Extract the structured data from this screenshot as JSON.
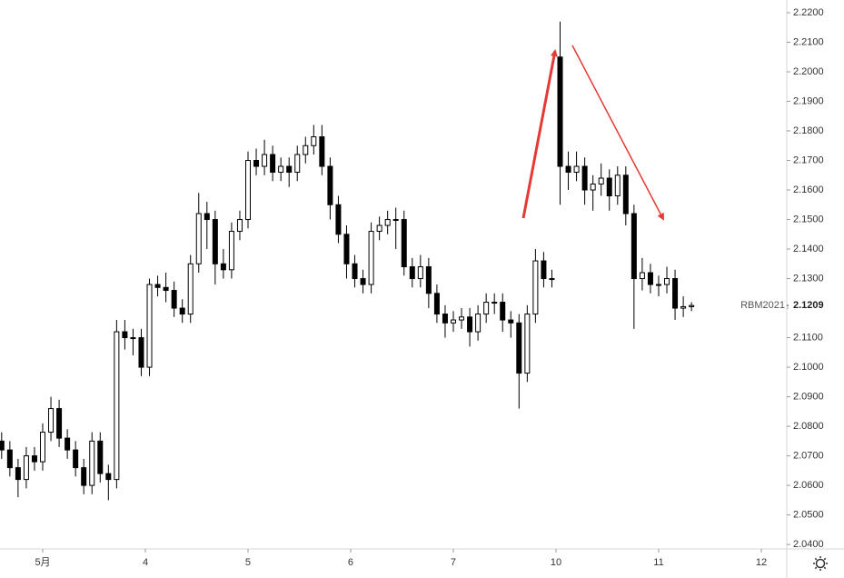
{
  "chart_data": {
    "type": "candlestick",
    "series": [
      {
        "name": "RBM2021",
        "up_color": "#ffffff",
        "down_color": "#000000",
        "outline_color": "#000000",
        "x": [
          -0.4,
          -0.32,
          -0.24,
          -0.16,
          -0.08,
          0,
          0.08,
          0.16,
          0.24,
          0.32,
          0.4,
          0.48,
          0.56,
          0.64,
          0.72,
          0.8,
          0.88,
          0.96,
          1.04,
          1.12,
          1.2,
          1.28,
          1.36,
          1.44,
          1.52,
          1.6,
          1.68,
          1.76,
          1.84,
          1.92,
          2,
          2.08,
          2.16,
          2.24,
          2.32,
          2.4,
          2.48,
          2.56,
          2.64,
          2.72,
          2.8,
          2.88,
          2.96,
          3.04,
          3.12,
          3.2,
          3.28,
          3.36,
          3.44,
          3.52,
          3.6,
          3.68,
          3.76,
          3.84,
          3.92,
          4,
          4.08,
          4.16,
          4.24,
          4.32,
          4.4,
          4.48,
          4.56,
          4.64,
          4.72,
          4.8,
          4.88,
          4.96,
          5.04,
          5.12,
          5.2,
          5.28,
          5.36,
          5.44,
          5.52,
          5.6,
          5.68,
          5.76,
          5.84,
          5.92,
          6,
          6.08,
          6.16,
          6.24,
          6.32
        ],
        "open": [
          2.075,
          2.072,
          2.066,
          2.062,
          2.07,
          2.068,
          2.078,
          2.086,
          2.076,
          2.072,
          2.066,
          2.06,
          2.075,
          2.064,
          2.062,
          2.112,
          2.11,
          2.11,
          2.1,
          2.128,
          2.127,
          2.126,
          2.12,
          2.118,
          2.135,
          2.152,
          2.15,
          2.135,
          2.133,
          2.146,
          2.15,
          2.17,
          2.168,
          2.172,
          2.166,
          2.168,
          2.166,
          2.172,
          2.175,
          2.178,
          2.168,
          2.155,
          2.145,
          2.135,
          2.13,
          2.128,
          2.146,
          2.148,
          2.15,
          2.15,
          2.134,
          2.13,
          2.134,
          2.125,
          2.118,
          2.115,
          2.116,
          2.117,
          2.112,
          2.118,
          2.122,
          2.122,
          2.116,
          2.115,
          2.098,
          2.118,
          2.136,
          2.13,
          2.205,
          2.168,
          2.166,
          2.168,
          2.16,
          2.162,
          2.164,
          2.158,
          2.165,
          2.152,
          2.13,
          2.132,
          2.128,
          2.128,
          2.13,
          2.12,
          2.1205
        ],
        "high": [
          2.078,
          2.075,
          2.069,
          2.073,
          2.073,
          2.081,
          2.09,
          2.089,
          2.079,
          2.075,
          2.069,
          2.078,
          2.078,
          2.067,
          2.116,
          2.116,
          2.113,
          2.113,
          2.13,
          2.131,
          2.132,
          2.129,
          2.123,
          2.138,
          2.159,
          2.156,
          2.153,
          2.14,
          2.149,
          2.153,
          2.173,
          2.174,
          2.177,
          2.175,
          2.171,
          2.171,
          2.175,
          2.178,
          2.182,
          2.182,
          2.171,
          2.158,
          2.148,
          2.138,
          2.133,
          2.149,
          2.151,
          2.153,
          2.154,
          2.153,
          2.137,
          2.138,
          2.137,
          2.128,
          2.121,
          2.119,
          2.12,
          2.12,
          2.121,
          2.125,
          2.125,
          2.125,
          2.119,
          2.118,
          2.121,
          2.14,
          2.139,
          2.133,
          2.217,
          2.173,
          2.173,
          2.171,
          2.165,
          2.169,
          2.167,
          2.168,
          2.168,
          2.155,
          2.137,
          2.135,
          2.131,
          2.134,
          2.133,
          2.124,
          2.122
        ],
        "low": [
          2.069,
          2.063,
          2.056,
          2.059,
          2.065,
          2.065,
          2.075,
          2.073,
          2.069,
          2.063,
          2.057,
          2.057,
          2.061,
          2.055,
          2.059,
          2.106,
          2.104,
          2.097,
          2.097,
          2.124,
          2.122,
          2.117,
          2.115,
          2.115,
          2.132,
          2.14,
          2.128,
          2.13,
          2.13,
          2.143,
          2.147,
          2.165,
          2.165,
          2.163,
          2.163,
          2.161,
          2.163,
          2.169,
          2.172,
          2.165,
          2.15,
          2.142,
          2.13,
          2.127,
          2.125,
          2.125,
          2.143,
          2.145,
          2.14,
          2.131,
          2.127,
          2.127,
          2.12,
          2.115,
          2.11,
          2.112,
          2.113,
          2.107,
          2.109,
          2.115,
          2.118,
          2.112,
          2.11,
          2.086,
          2.095,
          2.115,
          2.127,
          2.127,
          2.155,
          2.16,
          2.163,
          2.155,
          2.153,
          2.158,
          2.153,
          2.155,
          2.148,
          2.113,
          2.126,
          2.125,
          2.124,
          2.125,
          2.116,
          2.117,
          2.119
        ],
        "close": [
          2.072,
          2.066,
          2.062,
          2.07,
          2.068,
          2.078,
          2.086,
          2.076,
          2.072,
          2.066,
          2.06,
          2.075,
          2.064,
          2.062,
          2.112,
          2.11,
          2.11,
          2.1,
          2.128,
          2.127,
          2.126,
          2.12,
          2.118,
          2.135,
          2.152,
          2.15,
          2.135,
          2.133,
          2.146,
          2.15,
          2.17,
          2.168,
          2.172,
          2.166,
          2.168,
          2.166,
          2.172,
          2.175,
          2.178,
          2.168,
          2.155,
          2.145,
          2.135,
          2.13,
          2.128,
          2.146,
          2.148,
          2.15,
          2.15,
          2.134,
          2.13,
          2.134,
          2.125,
          2.118,
          2.115,
          2.116,
          2.117,
          2.112,
          2.118,
          2.122,
          2.122,
          2.116,
          2.115,
          2.098,
          2.118,
          2.136,
          2.13,
          2.13,
          2.168,
          2.166,
          2.168,
          2.16,
          2.162,
          2.164,
          2.158,
          2.165,
          2.152,
          2.13,
          2.132,
          2.128,
          2.128,
          2.13,
          2.12,
          2.1205,
          2.1209
        ]
      }
    ],
    "last_price": 2.1209,
    "xlim": [
      -0.416,
      7.248
    ],
    "ylim": [
      2.0385,
      2.2243
    ],
    "xticks": [
      {
        "value": 0,
        "label": "5月"
      },
      {
        "value": 1,
        "label": "4"
      },
      {
        "value": 2,
        "label": "5"
      },
      {
        "value": 3,
        "label": "6"
      },
      {
        "value": 4,
        "label": "7"
      },
      {
        "value": 5,
        "label": "10"
      },
      {
        "value": 6,
        "label": "11"
      },
      {
        "value": 7,
        "label": "12"
      }
    ],
    "yticks": [
      {
        "value": 2.04,
        "label": "2.0400"
      },
      {
        "value": 2.05,
        "label": "2.0500"
      },
      {
        "value": 2.06,
        "label": "2.0600"
      },
      {
        "value": 2.07,
        "label": "2.0700"
      },
      {
        "value": 2.08,
        "label": "2.0800"
      },
      {
        "value": 2.09,
        "label": "2.0900"
      },
      {
        "value": 2.1,
        "label": "2.1000"
      },
      {
        "value": 2.11,
        "label": "2.1100"
      },
      {
        "value": 2.12,
        "label": "2.1200"
      },
      {
        "value": 2.13,
        "label": "2.1300"
      },
      {
        "value": 2.14,
        "label": "2.1400"
      },
      {
        "value": 2.15,
        "label": "2.1500"
      },
      {
        "value": 2.16,
        "label": "2.1600"
      },
      {
        "value": 2.17,
        "label": "2.1700"
      },
      {
        "value": 2.18,
        "label": "2.1800"
      },
      {
        "value": 2.19,
        "label": "2.1900"
      },
      {
        "value": 2.2,
        "label": "2.2000"
      },
      {
        "value": 2.21,
        "label": "2.2100"
      },
      {
        "value": 2.22,
        "label": "2.2200"
      }
    ],
    "grid": false
  }
}
